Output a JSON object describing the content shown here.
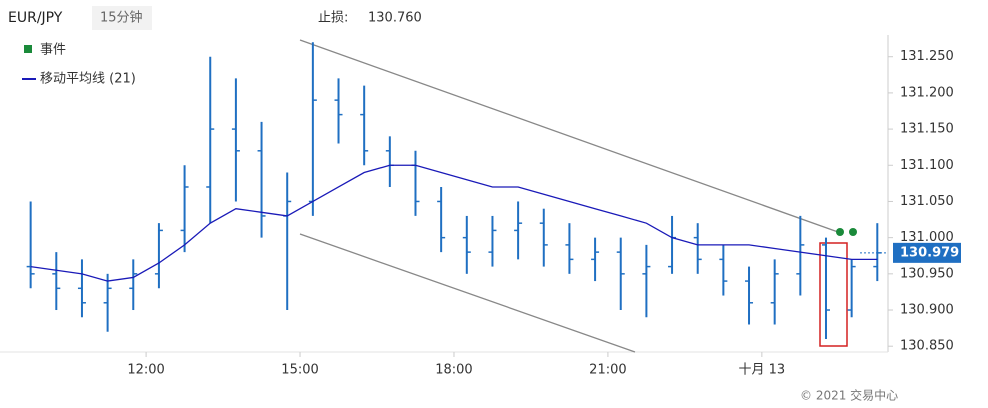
{
  "chart_data": {
    "type": "ohlc",
    "symbol": "EUR/JPY",
    "interval": "15分钟",
    "stop_loss_label": "止损:",
    "stop_loss": {
      "value": 130.76,
      "label": "130.760"
    },
    "legend": [
      "事件",
      "移动平均线 (21)"
    ],
    "copyright": "© 2021 交易中心",
    "color": "#1f6fc2",
    "ma_color": "#1a1ab8",
    "event_color": "#1a8a3a",
    "xlim": [
      9.64,
      26.4
    ],
    "xticks": [
      {
        "value": 12,
        "label": "12:00"
      },
      {
        "value": 15,
        "label": "15:00"
      },
      {
        "value": 18,
        "label": "18:00"
      },
      {
        "value": 21,
        "label": "21:00"
      },
      {
        "value": 24,
        "label": "十月 13"
      }
    ],
    "ylim": [
      130.842,
      131.28
    ],
    "yticks": [
      {
        "value": 130.85,
        "label": "130.850"
      },
      {
        "value": 130.9,
        "label": "130.900"
      },
      {
        "value": 130.95,
        "label": "130.950"
      },
      {
        "value": 131,
        "label": "131.000"
      },
      {
        "value": 131.05,
        "label": "131.050"
      },
      {
        "value": 131.1,
        "label": "131.100"
      },
      {
        "value": 131.15,
        "label": "131.150"
      },
      {
        "value": 131.2,
        "label": "131.200"
      },
      {
        "value": 131.25,
        "label": "131.250"
      }
    ],
    "last_price": 130.979,
    "x": [
      9.75,
      10.25,
      10.75,
      11.25,
      11.75,
      12.25,
      12.75,
      13.25,
      13.75,
      14.25,
      14.75,
      15.25,
      15.75,
      16.25,
      16.75,
      17.25,
      17.75,
      18.25,
      18.75,
      19.25,
      19.75,
      20.25,
      20.75,
      21.25,
      21.75,
      22.25,
      22.75,
      23.25,
      23.75,
      24.25,
      24.75,
      25.25,
      25.75,
      26.25
    ],
    "open": [
      130.96,
      130.95,
      130.93,
      130.91,
      130.93,
      130.95,
      131.01,
      131.07,
      131.15,
      131.12,
      131.03,
      131.05,
      131.19,
      131.17,
      131.12,
      131.1,
      131.05,
      131.0,
      130.98,
      131.01,
      131.02,
      130.99,
      130.97,
      130.98,
      130.95,
      130.96,
      131.0,
      130.97,
      130.94,
      130.91,
      130.95,
      130.99,
      130.9,
      130.96
    ],
    "high": [
      131.05,
      130.98,
      130.97,
      130.95,
      130.97,
      131.02,
      131.1,
      131.25,
      131.22,
      131.16,
      131.09,
      131.27,
      131.22,
      131.21,
      131.14,
      131.12,
      131.07,
      131.03,
      131.03,
      131.05,
      131.04,
      131.02,
      131.0,
      131.0,
      130.99,
      131.03,
      131.02,
      130.99,
      130.96,
      130.97,
      131.03,
      131.0,
      130.97,
      131.02
    ],
    "low": [
      130.93,
      130.9,
      130.89,
      130.87,
      130.9,
      130.93,
      130.98,
      131.02,
      131.05,
      131.0,
      130.9,
      131.03,
      131.13,
      131.1,
      131.07,
      131.03,
      130.98,
      130.95,
      130.96,
      130.97,
      130.96,
      130.95,
      130.94,
      130.9,
      130.89,
      130.95,
      130.95,
      130.92,
      130.88,
      130.88,
      130.92,
      130.86,
      130.89,
      130.94
    ],
    "close": [
      130.95,
      130.93,
      130.91,
      130.93,
      130.95,
      131.01,
      131.07,
      131.15,
      131.12,
      131.03,
      131.05,
      131.19,
      131.17,
      131.12,
      131.1,
      131.05,
      131.0,
      130.98,
      131.01,
      131.02,
      130.99,
      130.97,
      130.98,
      130.95,
      130.96,
      131.0,
      130.97,
      130.94,
      130.91,
      130.95,
      130.99,
      130.9,
      130.96,
      130.979
    ],
    "ma": [
      130.96,
      130.955,
      130.95,
      130.94,
      130.945,
      130.965,
      130.99,
      131.02,
      131.04,
      131.035,
      131.03,
      131.05,
      131.07,
      131.09,
      131.1,
      131.1,
      131.09,
      131.08,
      131.07,
      131.07,
      131.06,
      131.05,
      131.04,
      131.03,
      131.02,
      131.0,
      130.99,
      130.99,
      130.99,
      130.985,
      130.98,
      130.975,
      130.97,
      130.97
    ]
  }
}
